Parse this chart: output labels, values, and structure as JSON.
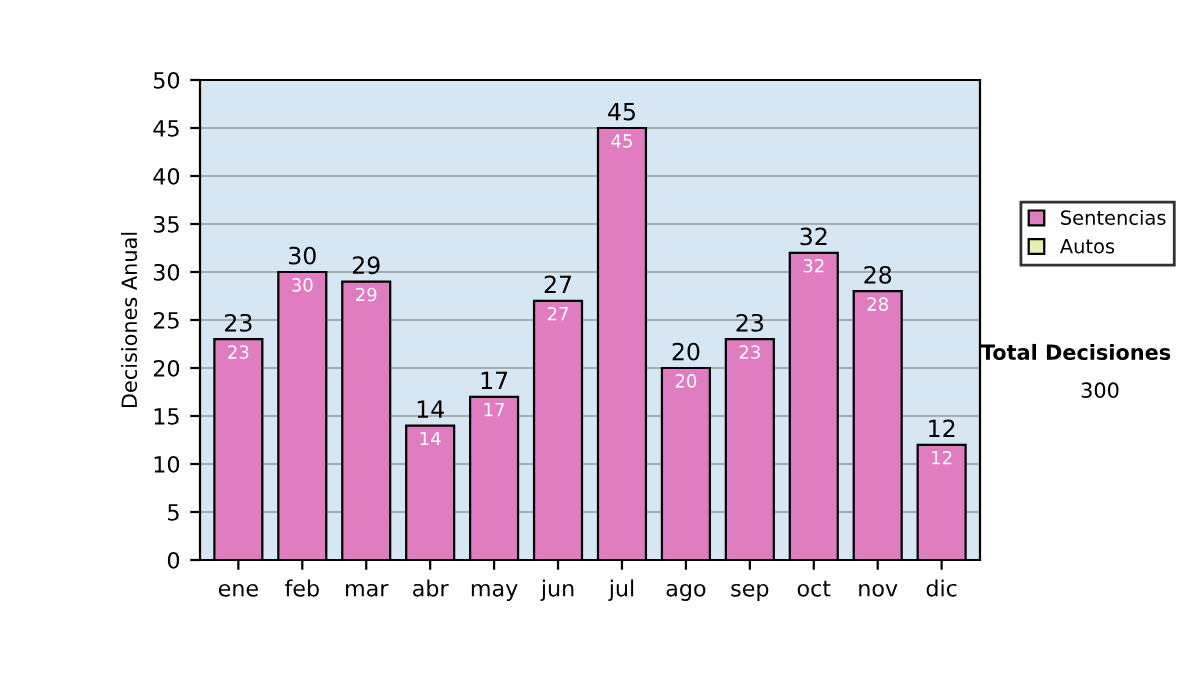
{
  "chart_data": {
    "type": "bar",
    "ylabel": "Decisiones Anual",
    "categories": [
      "ene",
      "feb",
      "mar",
      "abr",
      "may",
      "jun",
      "jul",
      "ago",
      "sep",
      "oct",
      "nov",
      "dic"
    ],
    "series": [
      {
        "name": "Sentencias",
        "color": "#e07cc0",
        "values": [
          23,
          30,
          29,
          14,
          17,
          27,
          45,
          20,
          23,
          32,
          28,
          12
        ],
        "value_labels": [
          "23",
          "30",
          "29",
          "14",
          "17",
          "27",
          "45",
          "20",
          "23",
          "32",
          "28",
          "12"
        ]
      },
      {
        "name": "Autos",
        "color": "#e4f0b4",
        "values": [
          null,
          null,
          null,
          null,
          null,
          null,
          null,
          null,
          null,
          null,
          null,
          null
        ]
      }
    ],
    "stacked": true,
    "totals": [
      "23",
      "30",
      "29",
      "14",
      "17",
      "27",
      "45",
      "20",
      "23",
      "32",
      "28",
      "12"
    ],
    "ylim": [
      0,
      50
    ],
    "yticks": [
      0,
      5,
      10,
      15,
      20,
      25,
      30,
      35,
      40,
      45,
      50
    ],
    "grid": "y",
    "legend": "right",
    "annotations": [
      "Total Decisiones",
      "300"
    ]
  }
}
